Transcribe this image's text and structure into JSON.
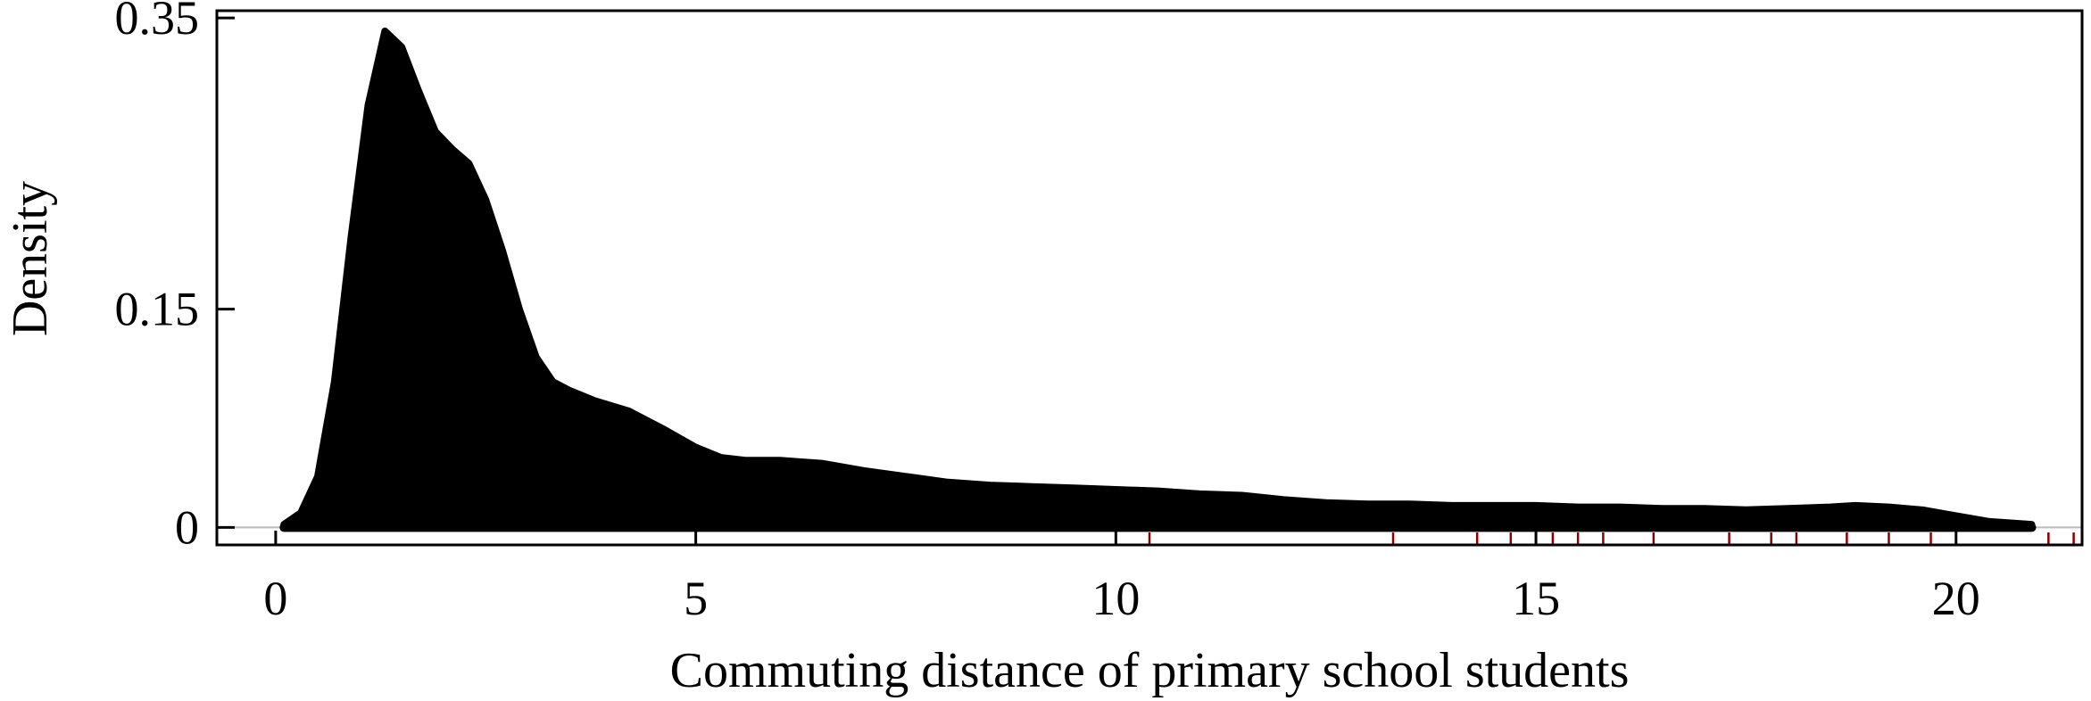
{
  "chart_data": {
    "type": "area",
    "title": "",
    "xlabel": "Commuting distance of primary school students",
    "ylabel": "Density",
    "xlim": [
      -0.7,
      21.5
    ],
    "ylim": [
      -0.012,
      0.355
    ],
    "xticks": [
      0,
      5,
      10,
      15,
      20
    ],
    "xtick_labels": [
      "0",
      "5",
      "10",
      "15",
      "20"
    ],
    "yticks": [
      0,
      0.15,
      0.35
    ],
    "ytick_labels": [
      "0",
      "0.15",
      "0.35"
    ],
    "grid": false,
    "legend": "none",
    "fill_color": "#000000",
    "rug_color": "#8b0000",
    "series": [
      {
        "x": [
          0.1,
          0.3,
          0.5,
          0.7,
          0.9,
          1.1,
          1.3,
          1.5,
          1.7,
          1.9,
          2.1,
          2.3,
          2.5,
          2.7,
          2.9,
          3.1,
          3.3,
          3.5,
          3.8,
          4.2,
          4.6,
          5.0,
          5.3,
          5.6,
          6.0,
          6.5,
          7.0,
          7.5,
          8.0,
          8.5,
          9.0,
          9.5,
          10.0,
          10.5,
          11.0,
          11.5,
          12.0,
          12.5,
          13.0,
          13.5,
          14.0,
          14.5,
          15.0,
          15.5,
          16.0,
          16.5,
          17.0,
          17.5,
          18.0,
          18.5,
          18.8,
          19.2,
          19.6,
          20.0,
          20.4,
          20.9
        ],
        "y": [
          0.002,
          0.01,
          0.035,
          0.1,
          0.2,
          0.29,
          0.341,
          0.33,
          0.3,
          0.272,
          0.26,
          0.25,
          0.225,
          0.19,
          0.15,
          0.117,
          0.1,
          0.094,
          0.087,
          0.08,
          0.068,
          0.055,
          0.048,
          0.046,
          0.046,
          0.044,
          0.039,
          0.035,
          0.031,
          0.029,
          0.028,
          0.027,
          0.026,
          0.025,
          0.023,
          0.022,
          0.019,
          0.017,
          0.016,
          0.016,
          0.015,
          0.015,
          0.015,
          0.014,
          0.014,
          0.013,
          0.013,
          0.012,
          0.013,
          0.014,
          0.015,
          0.014,
          0.012,
          0.008,
          0.004,
          0.002
        ]
      }
    ],
    "rug": [
      10.4,
      13.3,
      14.3,
      14.7,
      15.0,
      15.2,
      15.5,
      15.8,
      16.4,
      17.3,
      17.8,
      18.1,
      18.7,
      19.2,
      19.7,
      21.1,
      21.4,
      21.5
    ]
  }
}
